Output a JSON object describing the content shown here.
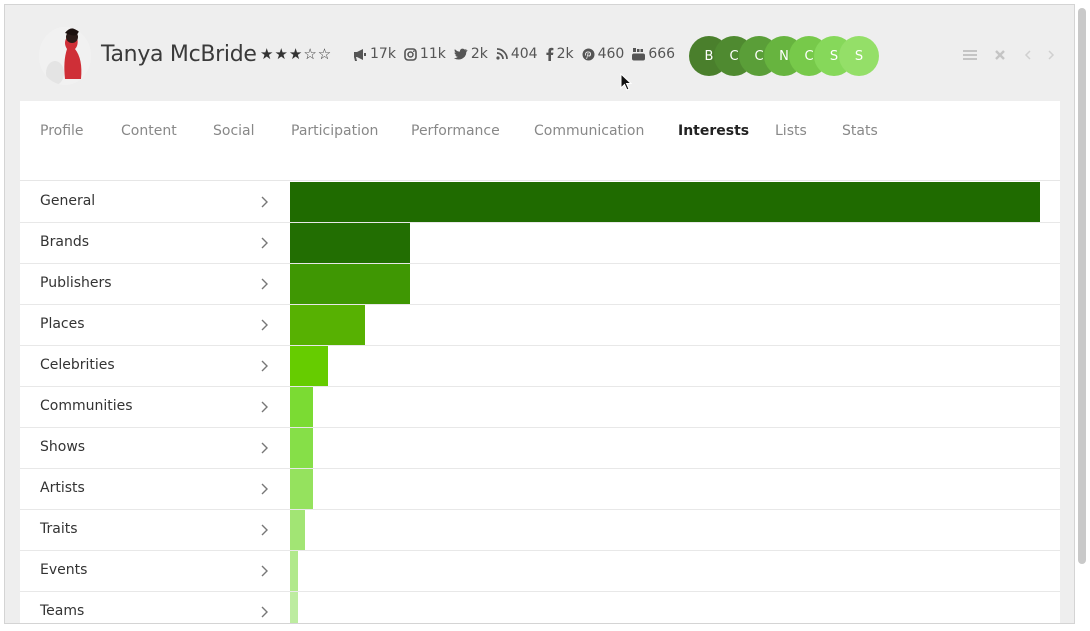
{
  "profile": {
    "name": "Tanya McBride",
    "rating": 3,
    "rating_max": 5,
    "stats": [
      {
        "icon": "megaphone-icon",
        "value": "17k"
      },
      {
        "icon": "instagram-icon",
        "value": "11k"
      },
      {
        "icon": "twitter-icon",
        "value": "2k"
      },
      {
        "icon": "rss-icon",
        "value": "404"
      },
      {
        "icon": "facebook-icon",
        "value": "2k"
      },
      {
        "icon": "pinterest-icon",
        "value": "460"
      },
      {
        "icon": "youtube-icon",
        "value": "666"
      }
    ],
    "badges": [
      {
        "letter": "B",
        "color": "#4a7f2c"
      },
      {
        "letter": "C",
        "color": "#4f8a30"
      },
      {
        "letter": "C",
        "color": "#5a9e38"
      },
      {
        "letter": "N",
        "color": "#67b43f"
      },
      {
        "letter": "C",
        "color": "#77c94a"
      },
      {
        "letter": "S",
        "color": "#86d85a"
      },
      {
        "letter": "S",
        "color": "#94df68"
      }
    ]
  },
  "tabs": [
    {
      "label": "Profile",
      "active": false
    },
    {
      "label": "Content",
      "active": false
    },
    {
      "label": "Social",
      "active": false
    },
    {
      "label": "Participation",
      "active": false
    },
    {
      "label": "Performance",
      "active": false
    },
    {
      "label": "Communication",
      "active": false
    },
    {
      "label": "Interests",
      "active": true
    },
    {
      "label": "Lists",
      "active": false
    },
    {
      "label": "Stats",
      "active": false
    }
  ],
  "chart_data": {
    "type": "bar",
    "orientation": "horizontal",
    "categories": [
      "General",
      "Brands",
      "Publishers",
      "Places",
      "Celebrities",
      "Communities",
      "Shows",
      "Artists",
      "Traits",
      "Events",
      "Teams"
    ],
    "values": [
      100,
      16,
      16,
      10,
      5,
      3,
      3,
      3,
      2,
      1,
      1
    ],
    "colors": [
      "#1f6b00",
      "#226e02",
      "#3f9703",
      "#57b102",
      "#66cc00",
      "#7bdb33",
      "#86df48",
      "#95e25e",
      "#a2e574",
      "#b1e98b",
      "#bdeca0"
    ],
    "xlim": [
      0,
      100
    ]
  }
}
